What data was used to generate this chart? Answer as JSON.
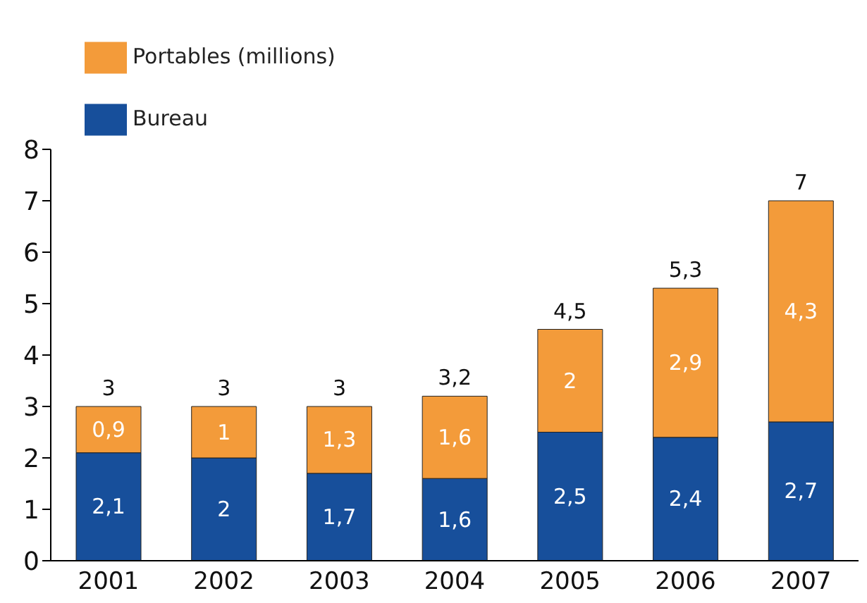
{
  "chart_data": {
    "type": "bar",
    "stacked": true,
    "categories": [
      "2001",
      "2002",
      "2003",
      "2004",
      "2005",
      "2006",
      "2007"
    ],
    "series": [
      {
        "name": "Bureau",
        "color": "#174f9b",
        "values": [
          2.1,
          2,
          1.7,
          1.6,
          2.5,
          2.4,
          2.7
        ],
        "value_labels": [
          "2,1",
          "2",
          "1,7",
          "1,6",
          "2,5",
          "2,4",
          "2,7"
        ]
      },
      {
        "name": "Portables (millions)",
        "color": "#f39b3a",
        "values": [
          0.9,
          1,
          1.3,
          1.6,
          2,
          2.9,
          4.3
        ],
        "value_labels": [
          "0,9",
          "1",
          "1,3",
          "1,6",
          "2",
          "2,9",
          "4,3"
        ]
      }
    ],
    "totals": [
      "3",
      "3",
      "3",
      "3,2",
      "4,5",
      "5,3",
      "7"
    ],
    "ylim": [
      0,
      8
    ],
    "yticks": [
      0,
      1,
      2,
      3,
      4,
      5,
      6,
      7,
      8
    ],
    "grid": false,
    "legend": "top left"
  }
}
